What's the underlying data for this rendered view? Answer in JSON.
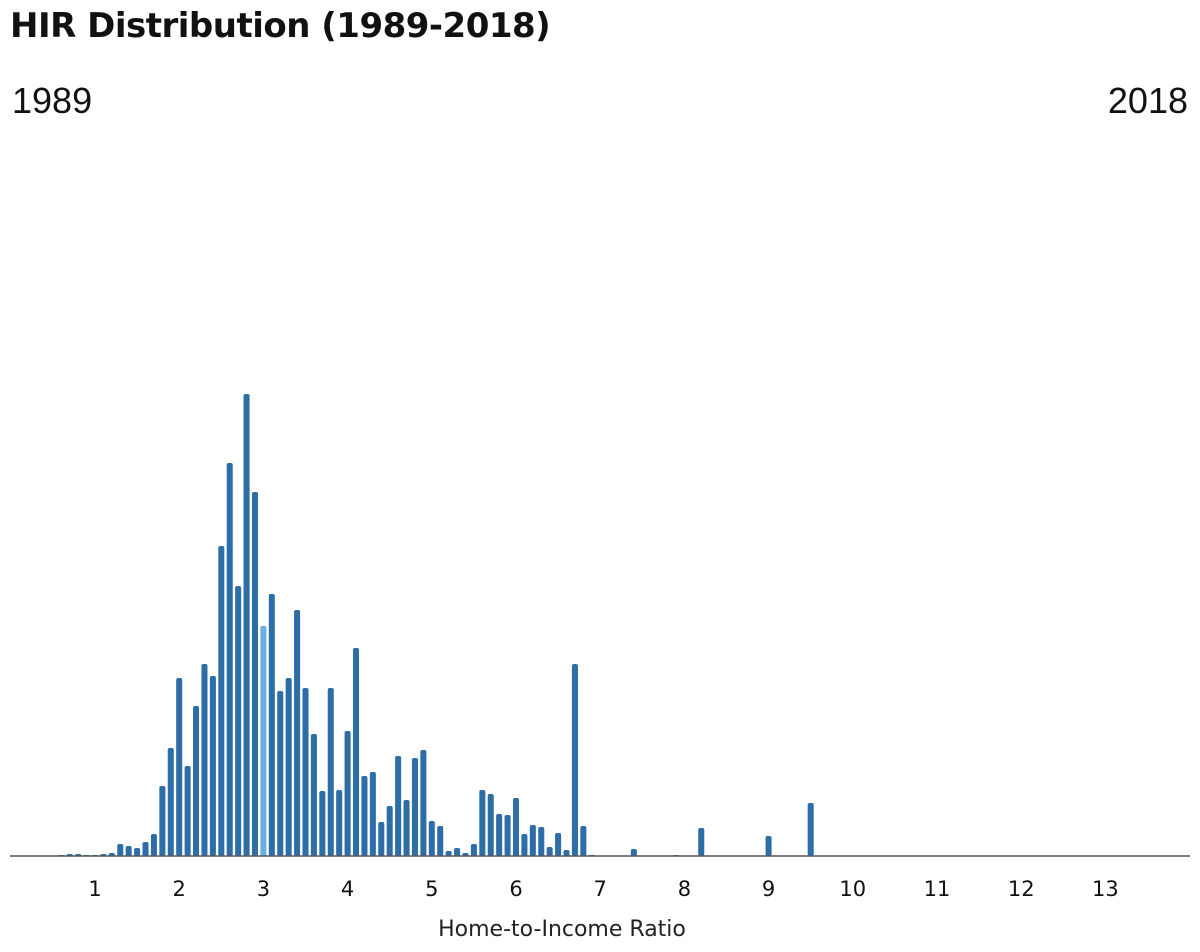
{
  "chart_data": {
    "type": "bar",
    "title": "HIR Distribution (1989-2018)",
    "year_start": "1989",
    "year_end": "2018",
    "xlabel": "Home-to-Income Ratio",
    "xlim": [
      0.3,
      14.0
    ],
    "xticks": [
      1,
      2,
      3,
      4,
      5,
      6,
      7,
      8,
      9,
      10,
      11,
      12,
      13
    ],
    "ylim": [
      0,
      470
    ],
    "bar_width": 0.1,
    "colors": {
      "bar": "#2e6ea6",
      "highlight": "#6aaee6",
      "axis": "#555555"
    },
    "highlight_x": 3.0,
    "x": [
      0.6,
      0.7,
      0.8,
      0.9,
      1.0,
      1.1,
      1.2,
      1.3,
      1.4,
      1.5,
      1.6,
      1.7,
      1.8,
      1.9,
      2.0,
      2.1,
      2.2,
      2.3,
      2.4,
      2.5,
      2.6,
      2.7,
      2.8,
      2.9,
      3.0,
      3.1,
      3.2,
      3.3,
      3.4,
      3.5,
      3.6,
      3.7,
      3.8,
      3.9,
      4.0,
      4.1,
      4.2,
      4.3,
      4.4,
      4.5,
      4.6,
      4.7,
      4.8,
      4.9,
      5.0,
      5.1,
      5.2,
      5.3,
      5.4,
      5.5,
      5.6,
      5.7,
      5.8,
      5.9,
      6.0,
      6.1,
      6.2,
      6.3,
      6.4,
      6.5,
      6.6,
      6.7,
      6.8,
      6.9,
      7.4,
      7.9,
      8.2,
      9.0,
      9.5
    ],
    "values": [
      1,
      2,
      2,
      1,
      1,
      2,
      3,
      12,
      10,
      8,
      14,
      22,
      70,
      108,
      178,
      90,
      150,
      192,
      180,
      310,
      393,
      270,
      462,
      364,
      230,
      262,
      165,
      178,
      246,
      168,
      122,
      65,
      168,
      66,
      125,
      208,
      80,
      84,
      34,
      50,
      100,
      56,
      98,
      106,
      35,
      30,
      5,
      8,
      3,
      12,
      66,
      62,
      42,
      41,
      58,
      22,
      31,
      29,
      9,
      23,
      6,
      192,
      30,
      1,
      7,
      1,
      28,
      20,
      53
    ]
  }
}
